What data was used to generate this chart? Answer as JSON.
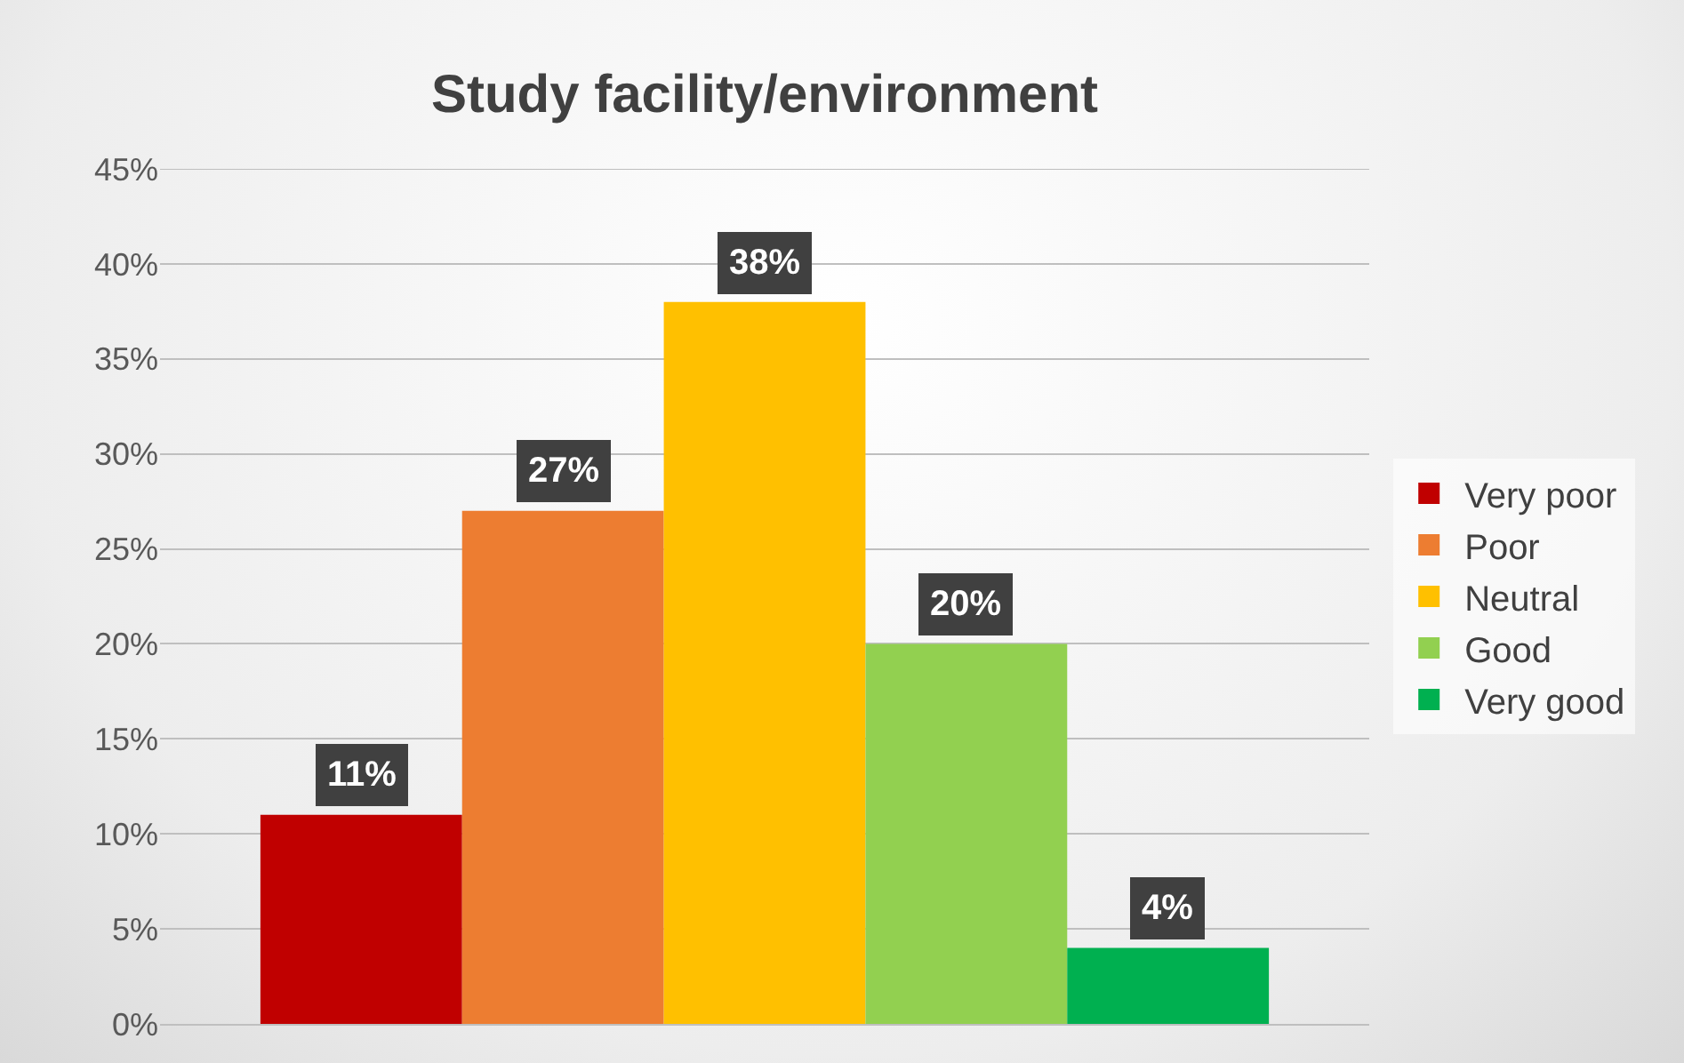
{
  "chart_data": {
    "type": "bar",
    "title": "Study facility/environment",
    "categories": [
      null
    ],
    "series": [
      {
        "name": "Very poor",
        "color": "#c00000",
        "values": [
          11
        ],
        "value_labels": [
          "11%"
        ]
      },
      {
        "name": "Poor",
        "color": "#ed7d31",
        "values": [
          27
        ],
        "value_labels": [
          "27%"
        ]
      },
      {
        "name": "Neutral",
        "color": "#ffc000",
        "values": [
          38
        ],
        "value_labels": [
          "38%"
        ]
      },
      {
        "name": "Good",
        "color": "#92d050",
        "values": [
          20
        ],
        "value_labels": [
          "20%"
        ]
      },
      {
        "name": "Very good",
        "color": "#00b050",
        "values": [
          4
        ],
        "value_labels": [
          "4%"
        ]
      }
    ],
    "ylim": [
      0,
      45
    ],
    "yticks": [
      {
        "value": 0,
        "label": "0%"
      },
      {
        "value": 5,
        "label": "5%"
      },
      {
        "value": 10,
        "label": "10%"
      },
      {
        "value": 15,
        "label": "15%"
      },
      {
        "value": 20,
        "label": "20%"
      },
      {
        "value": 25,
        "label": "25%"
      },
      {
        "value": 30,
        "label": "30%"
      },
      {
        "value": 35,
        "label": "35%"
      },
      {
        "value": 40,
        "label": "40%"
      },
      {
        "value": 45,
        "label": "45%"
      }
    ],
    "grid": "y",
    "legend": "right"
  }
}
